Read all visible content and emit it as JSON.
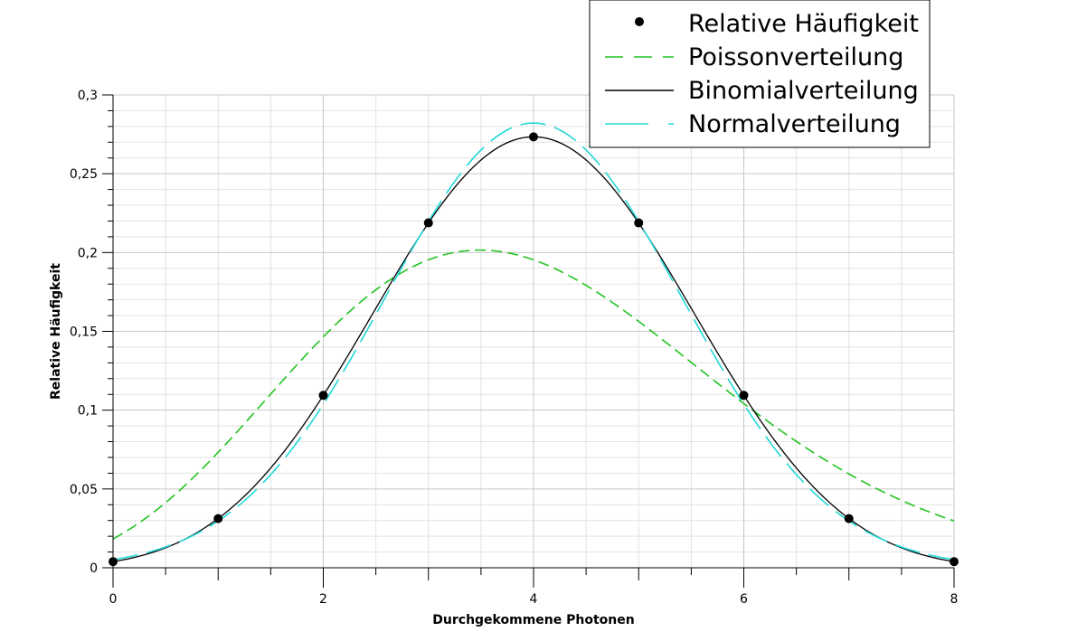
{
  "chart_data": {
    "type": "line",
    "xlabel": "Durchgekommene Photonen",
    "ylabel": "Relative Häufigkeit",
    "xlim": [
      0,
      8
    ],
    "ylim": [
      0,
      0.3
    ],
    "x_ticks": [
      "0",
      "2",
      "4",
      "6",
      "8"
    ],
    "y_ticks": [
      "0",
      "0,05",
      "0,1",
      "0,15",
      "0,2",
      "0,25",
      "0,3"
    ],
    "grid": true,
    "legend_position": "top-right",
    "series": [
      {
        "name": "Relative Häufigkeit",
        "kind": "points",
        "color": "#000000",
        "x": [
          0,
          1,
          2,
          3,
          4,
          5,
          6,
          7,
          8
        ],
        "y": [
          0.0039,
          0.0312,
          0.1094,
          0.2188,
          0.2734,
          0.2188,
          0.1094,
          0.0312,
          0.0039
        ]
      },
      {
        "name": "Poissonverteilung",
        "kind": "curve",
        "distribution": "poisson",
        "mean": 4,
        "style": "dashed",
        "color": "#22c422"
      },
      {
        "name": "Binomialverteilung",
        "kind": "curve",
        "distribution": "binomial",
        "n": 8,
        "p": 0.5,
        "style": "solid",
        "color": "#000000"
      },
      {
        "name": "Normalverteilung",
        "kind": "curve",
        "distribution": "normal",
        "mean": 4,
        "sd": 1.414,
        "style": "long-dashed",
        "color": "#22d8d8"
      }
    ]
  }
}
